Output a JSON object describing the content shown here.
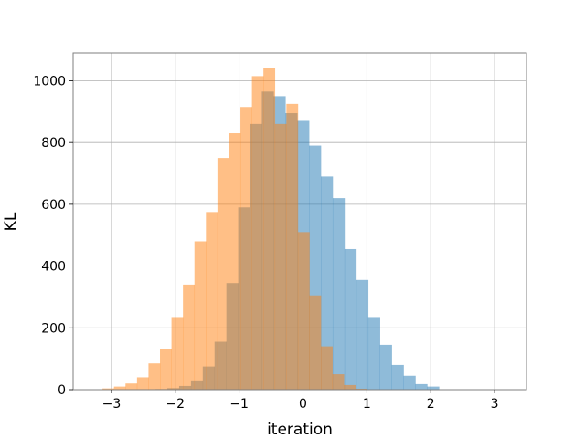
{
  "chart_data": {
    "type": "bar",
    "title": "",
    "xlabel": "iteration",
    "ylabel": "KL",
    "xlim": [
      -3.6,
      3.5
    ],
    "ylim": [
      0,
      1090
    ],
    "xticks": [
      -3,
      -2,
      -1,
      0,
      1,
      2,
      3
    ],
    "xtick_labels": [
      "−3",
      "−2",
      "−1",
      "0",
      "1",
      "2",
      "3"
    ],
    "yticks": [
      0,
      200,
      400,
      600,
      800,
      1000
    ],
    "ytick_labels": [
      "0",
      "200",
      "400",
      "600",
      "800",
      "1000"
    ],
    "grid": true,
    "legend": "none",
    "series": [
      {
        "color": "#1f77b4",
        "opacity": 0.5,
        "bin_width": 0.185,
        "bin_edges_start": -2.31,
        "counts": [
          2,
          5,
          12,
          30,
          75,
          155,
          345,
          590,
          860,
          965,
          950,
          895,
          870,
          790,
          690,
          620,
          455,
          355,
          235,
          145,
          80,
          45,
          18,
          10
        ]
      },
      {
        "color": "#ff7f0e",
        "opacity": 0.5,
        "bin_width": 0.18,
        "bin_edges_start": -3.14,
        "counts": [
          4,
          10,
          20,
          40,
          85,
          130,
          235,
          340,
          480,
          575,
          750,
          830,
          915,
          1015,
          1040,
          860,
          925,
          510,
          305,
          140,
          50,
          15,
          3
        ]
      }
    ]
  }
}
